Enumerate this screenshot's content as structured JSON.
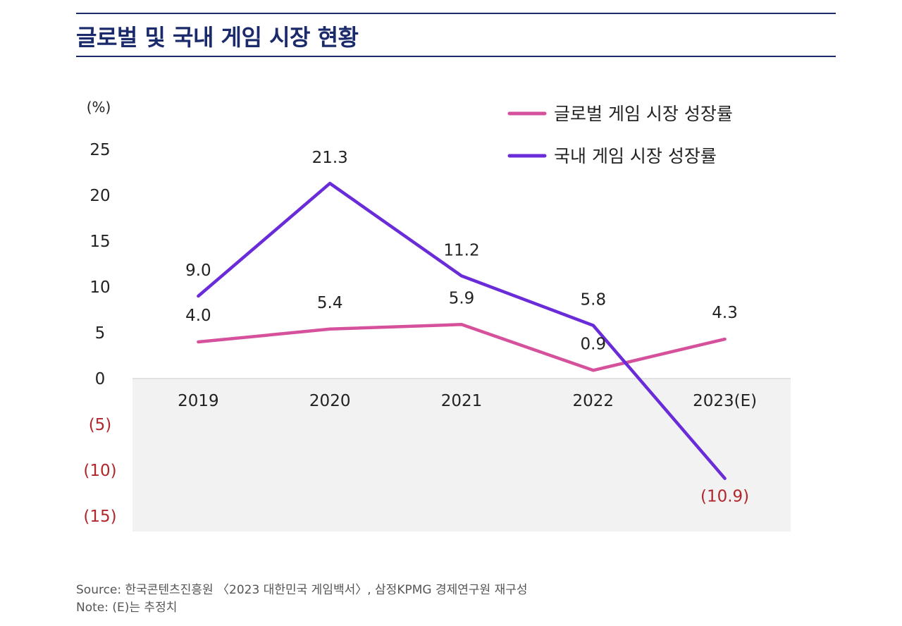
{
  "page": {
    "title": "글로벌 및 국내 게임 시장 현황",
    "source": "Source: 한국콘텐츠진흥원 〈2023 대한민국 게임백서〉, 삼정KPMG 경제연구원 재구성",
    "note": "Note: (E)는 추정치"
  },
  "chart_data": {
    "type": "line",
    "title": "",
    "xlabel": "",
    "ylabel": "(%)",
    "categories": [
      "2019",
      "2020",
      "2021",
      "2022",
      "2023(E)"
    ],
    "ylim": [
      -15,
      25
    ],
    "yticks": [
      25,
      20,
      15,
      10,
      5,
      0,
      -5,
      -10,
      -15
    ],
    "ytick_labels": [
      "25",
      "20",
      "15",
      "10",
      "5",
      "0",
      "(5)",
      "(10)",
      "(15)"
    ],
    "negative_region_shaded": true,
    "legend_position": "top-right",
    "series": [
      {
        "name": "글로벌 게임 시장 성장률",
        "color": "#d6519c",
        "values": [
          4.0,
          5.4,
          5.9,
          0.9,
          4.3
        ],
        "labels": [
          "4.0",
          "5.4",
          "5.9",
          "0.9",
          "4.3"
        ]
      },
      {
        "name": "국내 게임 시장 성장률",
        "color": "#6a2bd9",
        "values": [
          9.0,
          21.3,
          11.2,
          5.8,
          -10.9
        ],
        "labels": [
          "9.0",
          "21.3",
          "11.2",
          "5.8",
          "(10.9)"
        ]
      }
    ],
    "colors": {
      "positive_text": "#222222",
      "negative_text": "#b0272c",
      "shade": "#f2f2f2"
    }
  }
}
